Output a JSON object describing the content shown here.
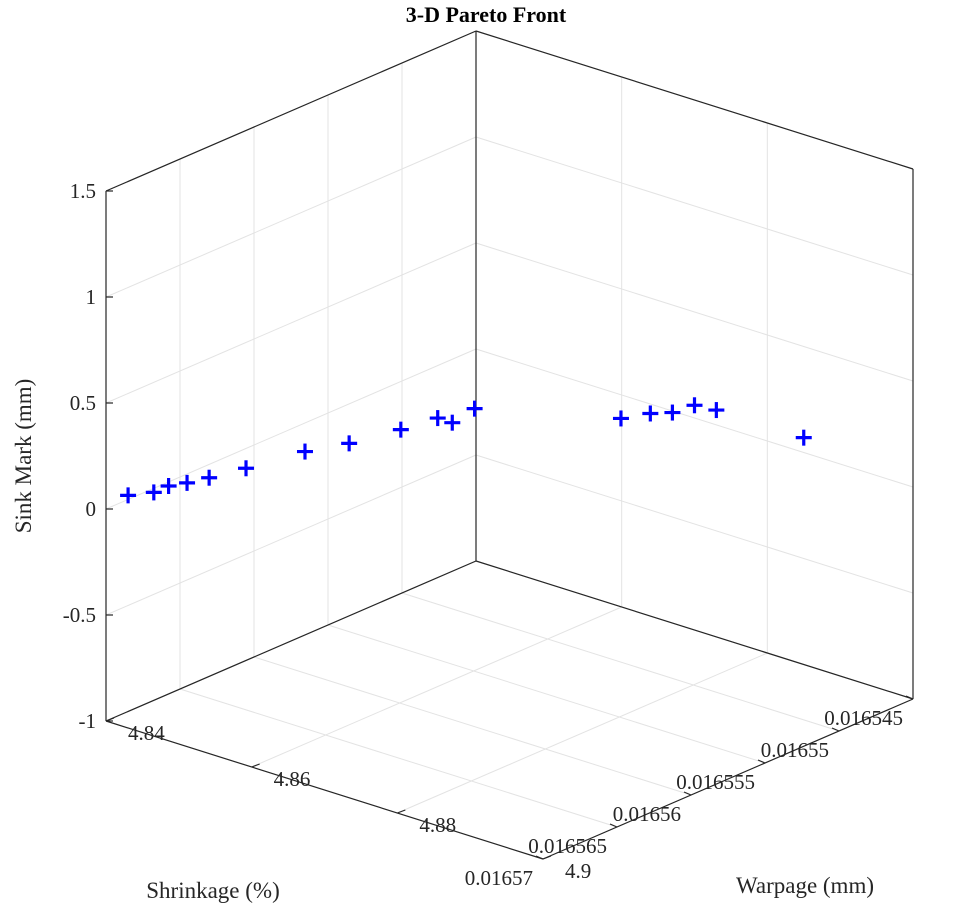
{
  "chart_data": {
    "type": "scatter",
    "title": "3-D Pareto Front",
    "xlabel": "Shrinkage (%)",
    "ylabel": "Warpage (mm)",
    "zlabel": "Sink Mark (mm)",
    "xlim": [
      0.016545,
      0.01657
    ],
    "ylim": [
      4.84,
      4.9
    ],
    "zlim": [
      -1,
      1.5
    ],
    "x_ticks": [
      "0.01657",
      "0.016565",
      "0.01656",
      "0.016555",
      "0.01655",
      "0.016545"
    ],
    "y_ticks": [
      "4.84",
      "4.86",
      "4.88",
      "4.9"
    ],
    "z_ticks": [
      "1.5",
      "1",
      "0.5",
      "0",
      "-0.5",
      "-1"
    ],
    "grid": true,
    "marker": "+",
    "marker_color": "#0000ff",
    "points": [
      {
        "x": 0.016569,
        "y": 4.841,
        "z": 0.045
      },
      {
        "x": 0.016568,
        "y": 4.8425,
        "z": 0.045
      },
      {
        "x": 0.016567,
        "y": 4.8425,
        "z": 0.045
      },
      {
        "x": 0.016566,
        "y": 4.843,
        "z": 0.035
      },
      {
        "x": 0.016565,
        "y": 4.844,
        "z": 0.04
      },
      {
        "x": 0.016563,
        "y": 4.845,
        "z": 0.035
      },
      {
        "x": 0.01656,
        "y": 4.847,
        "z": 0.045
      },
      {
        "x": 0.016558,
        "y": 4.849,
        "z": 0.045
      },
      {
        "x": 0.016555,
        "y": 4.85,
        "z": 0.03
      },
      {
        "x": 0.016553,
        "y": 4.851,
        "z": 0.035
      },
      {
        "x": 0.016553,
        "y": 4.853,
        "z": 0.035
      },
      {
        "x": 0.016551,
        "y": 4.852,
        "z": 0.03
      },
      {
        "x": 0.016548,
        "y": 4.866,
        "z": 0.045
      },
      {
        "x": 0.016547,
        "y": 4.868,
        "z": 0.06
      },
      {
        "x": 0.016546,
        "y": 4.869,
        "z": 0.045
      },
      {
        "x": 0.016545,
        "y": 4.87,
        "z": 0.06
      },
      {
        "x": 0.016545,
        "y": 4.873,
        "z": 0.07
      },
      {
        "x": 0.016545,
        "y": 4.885,
        "z": 0.07
      }
    ]
  }
}
